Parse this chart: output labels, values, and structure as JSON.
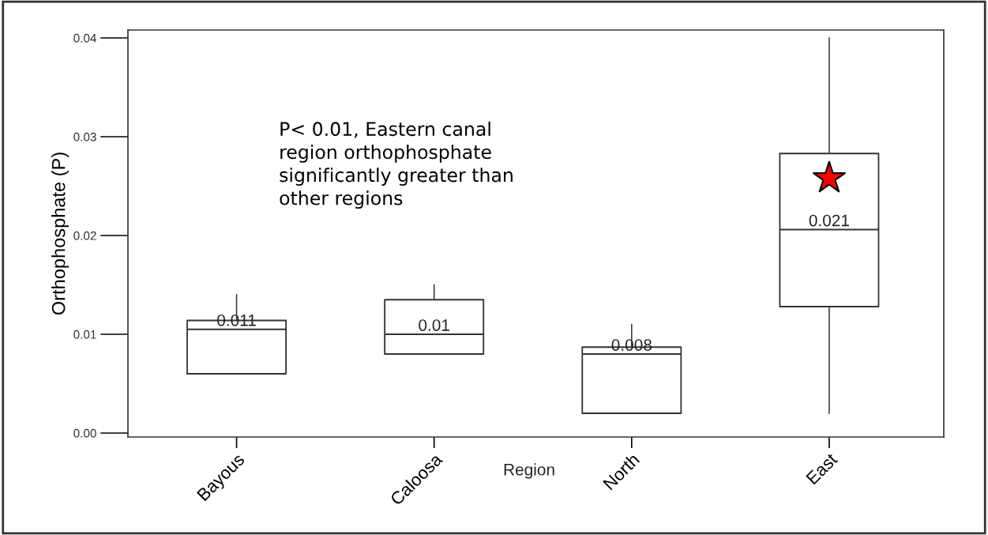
{
  "chart_data": {
    "type": "box",
    "xlabel": "Region",
    "ylabel": "Orthophosphate (P)",
    "categories": [
      "Bayous",
      "Caloosa",
      "North",
      "East"
    ],
    "boxes": [
      {
        "low": 0.006,
        "q1": 0.006,
        "median": 0.0105,
        "q3": 0.0114,
        "high": 0.014
      },
      {
        "low": 0.008,
        "q1": 0.008,
        "median": 0.01,
        "q3": 0.0135,
        "high": 0.015
      },
      {
        "low": 0.002,
        "q1": 0.002,
        "median": 0.008,
        "q3": 0.0087,
        "high": 0.011
      },
      {
        "low": 0.002,
        "q1": 0.0128,
        "median": 0.0206,
        "q3": 0.0283,
        "high": 0.04
      }
    ],
    "value_labels": [
      "0.011",
      "0.01",
      "0.008",
      "0.021"
    ],
    "series": [
      {
        "type": "scatter",
        "x": [
          "East"
        ],
        "values": [
          0.0258
        ],
        "color": "#ff0000",
        "marker": "star"
      }
    ],
    "ylim": [
      -0.0004,
      0.0408
    ],
    "yticks": [
      {
        "value": 0,
        "label": "0.00"
      },
      0.01,
      0.02,
      0.03,
      0.04
    ],
    "annotations": [
      "P< 0.01, Eastern canal\nregion orthophosphate\nsignificantly greater than\nother regions"
    ],
    "grid": false,
    "legend": false
  }
}
